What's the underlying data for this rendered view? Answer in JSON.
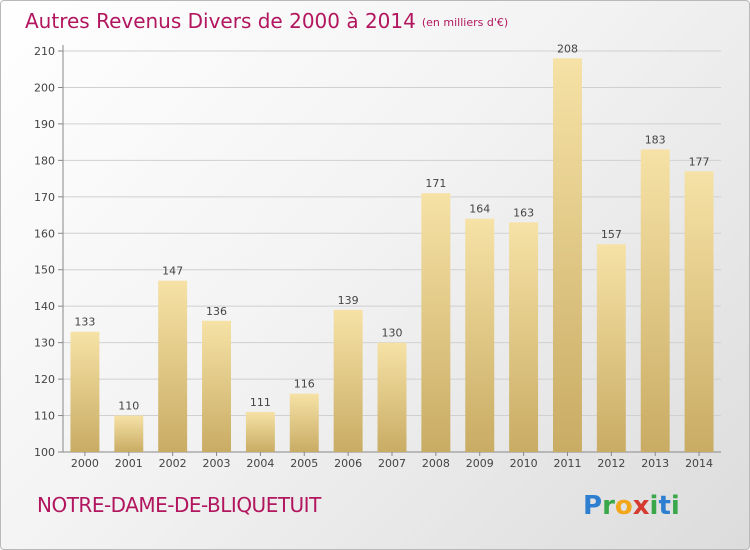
{
  "title": "Autres Revenus Divers de 2000 à 2014",
  "subtitle": "(en milliers d'€)",
  "place": "NOTRE-DAME-DE-BLIQUETUIT",
  "logo": "Proxiti",
  "colors": {
    "title": "#b2165f",
    "bar_light": "#f6e0a0",
    "bar_dark": "#c7aa62"
  },
  "chart_data": {
    "type": "bar",
    "title": "Autres Revenus Divers de 2000 à 2014",
    "subtitle": "(en milliers d'€)",
    "categories": [
      "2000",
      "2001",
      "2002",
      "2003",
      "2004",
      "2005",
      "2006",
      "2007",
      "2008",
      "2009",
      "2010",
      "2011",
      "2012",
      "2013",
      "2014"
    ],
    "values": [
      133,
      110,
      147,
      136,
      111,
      116,
      139,
      130,
      171,
      164,
      163,
      208,
      157,
      183,
      177
    ],
    "ylim": [
      100,
      210
    ],
    "yticks": [
      100,
      110,
      120,
      130,
      140,
      150,
      160,
      170,
      180,
      190,
      200,
      210
    ],
    "grid": true,
    "data_labels": true
  }
}
